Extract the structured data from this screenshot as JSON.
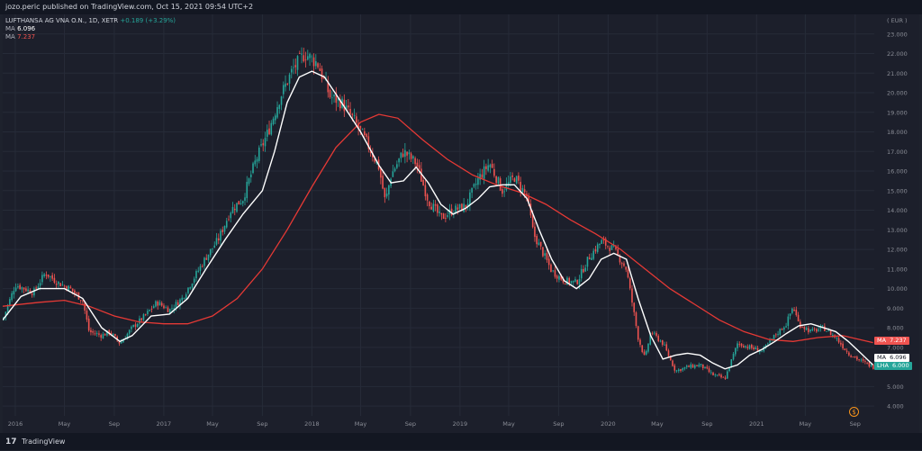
{
  "header": {
    "publish_info": "jozo.peric published on TradingView.com, Oct 15, 2021 09:54 UTC+2"
  },
  "legend": {
    "symbol": "LUFTHANSA AG VNA O.N., 1D, XETR",
    "change": "+0.189 (+3.29%)",
    "ma_rows": [
      {
        "label": "MA",
        "value": "6.096"
      },
      {
        "label": "MA",
        "value": "7.237"
      }
    ]
  },
  "footer": {
    "logo": "17",
    "brand": "TradingView"
  },
  "price_tags": {
    "ma_red": {
      "label": "MA",
      "value": "7.237",
      "color": "#ef5350"
    },
    "ma_white": {
      "label": "MA",
      "value": "6.096",
      "color": "#ffffff"
    },
    "lha": {
      "label": "LHA",
      "value": "6.000",
      "color": "#26a69a"
    }
  },
  "event_marker": {
    "symbol": "$"
  },
  "colors": {
    "background": "#1c1f2b",
    "grid": "#262b38",
    "up": "#26a69a",
    "down": "#ef5350",
    "ma_fast": "#ffffff",
    "ma_slow": "#e53935",
    "axis_text": "#8b8e97"
  },
  "chart_data": {
    "type": "candlestick",
    "currency_label": "EUR",
    "ylim": [
      3.5,
      24.0
    ],
    "y_ticks": [
      4.0,
      5.0,
      6.0,
      7.0,
      8.0,
      9.0,
      10.0,
      11.0,
      12.0,
      13.0,
      14.0,
      15.0,
      16.0,
      17.0,
      18.0,
      19.0,
      20.0,
      21.0,
      22.0,
      23.0
    ],
    "y_tick_labels": [
      "4.000",
      "5.000",
      "6.000",
      "7.000",
      "8.000",
      "9.000",
      "10.000",
      "11.000",
      "12.000",
      "13.000",
      "14.000",
      "15.000",
      "16.000",
      "17.000",
      "18.000",
      "19.000",
      "20.000",
      "21.000",
      "22.000",
      "23.000"
    ],
    "x_range": [
      "2015-12-01",
      "2021-10-18"
    ],
    "x_ticks": [
      {
        "date": "2016-01-01",
        "label": "2016"
      },
      {
        "date": "2016-05-01",
        "label": "May"
      },
      {
        "date": "2016-09-01",
        "label": "Sep"
      },
      {
        "date": "2017-01-01",
        "label": "2017"
      },
      {
        "date": "2017-05-01",
        "label": "May"
      },
      {
        "date": "2017-09-01",
        "label": "Sep"
      },
      {
        "date": "2018-01-01",
        "label": "2018"
      },
      {
        "date": "2018-05-01",
        "label": "May"
      },
      {
        "date": "2018-09-01",
        "label": "Sep"
      },
      {
        "date": "2019-01-01",
        "label": "2019"
      },
      {
        "date": "2019-05-01",
        "label": "May"
      },
      {
        "date": "2019-09-01",
        "label": "Sep"
      },
      {
        "date": "2020-01-01",
        "label": "2020"
      },
      {
        "date": "2020-05-01",
        "label": "May"
      },
      {
        "date": "2020-09-01",
        "label": "Sep"
      },
      {
        "date": "2021-01-01",
        "label": "2021"
      },
      {
        "date": "2021-05-01",
        "label": "May"
      },
      {
        "date": "2021-09-01",
        "label": "Sep"
      }
    ],
    "price_series": [
      [
        "2015-12-01",
        8.4
      ],
      [
        "2016-01-01",
        10.2
      ],
      [
        "2016-02-15",
        9.8
      ],
      [
        "2016-03-15",
        10.8
      ],
      [
        "2016-04-15",
        10.3
      ],
      [
        "2016-05-15",
        10.0
      ],
      [
        "2016-06-15",
        9.4
      ],
      [
        "2016-07-01",
        7.8
      ],
      [
        "2016-08-01",
        7.6
      ],
      [
        "2016-08-20",
        7.8
      ],
      [
        "2016-09-15",
        7.2
      ],
      [
        "2016-10-15",
        8.0
      ],
      [
        "2016-11-15",
        8.6
      ],
      [
        "2016-12-15",
        9.3
      ],
      [
        "2017-01-15",
        8.9
      ],
      [
        "2017-02-15",
        9.5
      ],
      [
        "2017-03-15",
        10.5
      ],
      [
        "2017-04-15",
        11.6
      ],
      [
        "2017-05-15",
        12.5
      ],
      [
        "2017-06-15",
        14.0
      ],
      [
        "2017-07-15",
        14.6
      ],
      [
        "2017-08-15",
        16.5
      ],
      [
        "2017-09-15",
        18.0
      ],
      [
        "2017-10-15",
        19.8
      ],
      [
        "2017-11-15",
        21.2
      ],
      [
        "2017-12-15",
        22.0
      ],
      [
        "2018-01-15",
        21.5
      ],
      [
        "2018-02-15",
        19.8
      ],
      [
        "2018-03-15",
        19.5
      ],
      [
        "2018-04-15",
        18.6
      ],
      [
        "2018-05-15",
        17.5
      ],
      [
        "2018-06-15",
        16.2
      ],
      [
        "2018-07-01",
        14.4
      ],
      [
        "2018-07-15",
        15.8
      ],
      [
        "2018-08-15",
        17.0
      ],
      [
        "2018-09-15",
        16.4
      ],
      [
        "2018-10-15",
        14.5
      ],
      [
        "2018-11-15",
        13.6
      ],
      [
        "2018-12-15",
        14.0
      ],
      [
        "2019-01-15",
        14.2
      ],
      [
        "2019-02-15",
        15.6
      ],
      [
        "2019-03-15",
        16.4
      ],
      [
        "2019-04-15",
        15.0
      ],
      [
        "2019-05-15",
        15.7
      ],
      [
        "2019-06-15",
        14.7
      ],
      [
        "2019-07-01",
        12.8
      ],
      [
        "2019-08-15",
        10.9
      ],
      [
        "2019-09-15",
        10.4
      ],
      [
        "2019-10-15",
        10.3
      ],
      [
        "2019-11-15",
        11.6
      ],
      [
        "2019-12-15",
        12.4
      ],
      [
        "2020-01-15",
        12.0
      ],
      [
        "2020-02-15",
        11.0
      ],
      [
        "2020-03-15",
        7.5
      ],
      [
        "2020-04-01",
        6.4
      ],
      [
        "2020-04-15",
        7.8
      ],
      [
        "2020-05-15",
        7.2
      ],
      [
        "2020-06-15",
        5.8
      ],
      [
        "2020-07-15",
        6.0
      ],
      [
        "2020-08-15",
        6.1
      ],
      [
        "2020-09-15",
        5.6
      ],
      [
        "2020-10-15",
        5.4
      ],
      [
        "2020-11-15",
        7.2
      ],
      [
        "2020-12-15",
        7.0
      ],
      [
        "2021-01-15",
        6.8
      ],
      [
        "2021-02-15",
        7.6
      ],
      [
        "2021-03-15",
        8.2
      ],
      [
        "2021-04-01",
        9.1
      ],
      [
        "2021-04-15",
        8.2
      ],
      [
        "2021-05-15",
        7.8
      ],
      [
        "2021-06-15",
        8.0
      ],
      [
        "2021-07-15",
        7.5
      ],
      [
        "2021-08-15",
        6.7
      ],
      [
        "2021-09-15",
        6.3
      ],
      [
        "2021-10-15",
        6.0
      ]
    ],
    "ma_fast": [
      [
        "2015-12-01",
        8.4
      ],
      [
        "2016-01-15",
        9.6
      ],
      [
        "2016-03-01",
        10.0
      ],
      [
        "2016-05-01",
        10.0
      ],
      [
        "2016-06-15",
        9.5
      ],
      [
        "2016-08-01",
        8.0
      ],
      [
        "2016-09-15",
        7.3
      ],
      [
        "2016-10-15",
        7.6
      ],
      [
        "2016-12-01",
        8.6
      ],
      [
        "2017-01-15",
        8.7
      ],
      [
        "2017-03-01",
        9.5
      ],
      [
        "2017-04-15",
        11.0
      ],
      [
        "2017-06-01",
        12.5
      ],
      [
        "2017-07-15",
        13.8
      ],
      [
        "2017-09-01",
        15.0
      ],
      [
        "2017-10-01",
        17.0
      ],
      [
        "2017-11-01",
        19.5
      ],
      [
        "2017-12-01",
        20.8
      ],
      [
        "2018-01-01",
        21.1
      ],
      [
        "2018-02-01",
        20.8
      ],
      [
        "2018-03-15",
        19.5
      ],
      [
        "2018-05-01",
        18.0
      ],
      [
        "2018-06-15",
        16.3
      ],
      [
        "2018-07-15",
        15.4
      ],
      [
        "2018-08-15",
        15.5
      ],
      [
        "2018-09-15",
        16.2
      ],
      [
        "2018-10-15",
        15.4
      ],
      [
        "2018-11-15",
        14.3
      ],
      [
        "2018-12-15",
        13.8
      ],
      [
        "2019-01-15",
        14.1
      ],
      [
        "2019-02-15",
        14.6
      ],
      [
        "2019-03-15",
        15.2
      ],
      [
        "2019-04-15",
        15.3
      ],
      [
        "2019-05-15",
        15.3
      ],
      [
        "2019-06-15",
        14.6
      ],
      [
        "2019-07-15",
        13.0
      ],
      [
        "2019-08-15",
        11.5
      ],
      [
        "2019-09-15",
        10.4
      ],
      [
        "2019-10-15",
        10.0
      ],
      [
        "2019-11-15",
        10.5
      ],
      [
        "2019-12-15",
        11.5
      ],
      [
        "2020-01-15",
        11.8
      ],
      [
        "2020-02-15",
        11.5
      ],
      [
        "2020-03-15",
        9.5
      ],
      [
        "2020-04-15",
        7.6
      ],
      [
        "2020-05-15",
        6.4
      ],
      [
        "2020-06-15",
        6.6
      ],
      [
        "2020-07-15",
        6.7
      ],
      [
        "2020-08-15",
        6.6
      ],
      [
        "2020-09-15",
        6.2
      ],
      [
        "2020-10-15",
        5.9
      ],
      [
        "2020-11-15",
        6.1
      ],
      [
        "2020-12-15",
        6.6
      ],
      [
        "2021-01-15",
        6.9
      ],
      [
        "2021-02-15",
        7.3
      ],
      [
        "2021-03-15",
        7.7
      ],
      [
        "2021-04-15",
        8.1
      ],
      [
        "2021-05-15",
        8.2
      ],
      [
        "2021-06-15",
        8.0
      ],
      [
        "2021-07-15",
        7.8
      ],
      [
        "2021-08-15",
        7.3
      ],
      [
        "2021-09-15",
        6.7
      ],
      [
        "2021-10-15",
        6.1
      ]
    ],
    "ma_slow": [
      [
        "2015-12-01",
        9.1
      ],
      [
        "2016-03-01",
        9.3
      ],
      [
        "2016-05-01",
        9.4
      ],
      [
        "2016-07-01",
        9.1
      ],
      [
        "2016-09-01",
        8.6
      ],
      [
        "2016-11-01",
        8.3
      ],
      [
        "2017-01-01",
        8.2
      ],
      [
        "2017-03-01",
        8.2
      ],
      [
        "2017-05-01",
        8.6
      ],
      [
        "2017-07-01",
        9.5
      ],
      [
        "2017-09-01",
        11.0
      ],
      [
        "2017-11-01",
        13.0
      ],
      [
        "2018-01-01",
        15.2
      ],
      [
        "2018-03-01",
        17.2
      ],
      [
        "2018-05-01",
        18.5
      ],
      [
        "2018-06-15",
        18.9
      ],
      [
        "2018-08-01",
        18.7
      ],
      [
        "2018-10-01",
        17.6
      ],
      [
        "2018-12-01",
        16.6
      ],
      [
        "2019-02-01",
        15.8
      ],
      [
        "2019-04-01",
        15.3
      ],
      [
        "2019-06-01",
        14.9
      ],
      [
        "2019-08-01",
        14.3
      ],
      [
        "2019-10-01",
        13.5
      ],
      [
        "2019-12-01",
        12.8
      ],
      [
        "2020-02-01",
        12.0
      ],
      [
        "2020-04-01",
        11.0
      ],
      [
        "2020-06-01",
        10.0
      ],
      [
        "2020-08-01",
        9.2
      ],
      [
        "2020-10-01",
        8.4
      ],
      [
        "2020-12-01",
        7.8
      ],
      [
        "2021-02-01",
        7.4
      ],
      [
        "2021-04-01",
        7.3
      ],
      [
        "2021-06-01",
        7.5
      ],
      [
        "2021-08-01",
        7.6
      ],
      [
        "2021-10-15",
        7.24
      ]
    ]
  }
}
